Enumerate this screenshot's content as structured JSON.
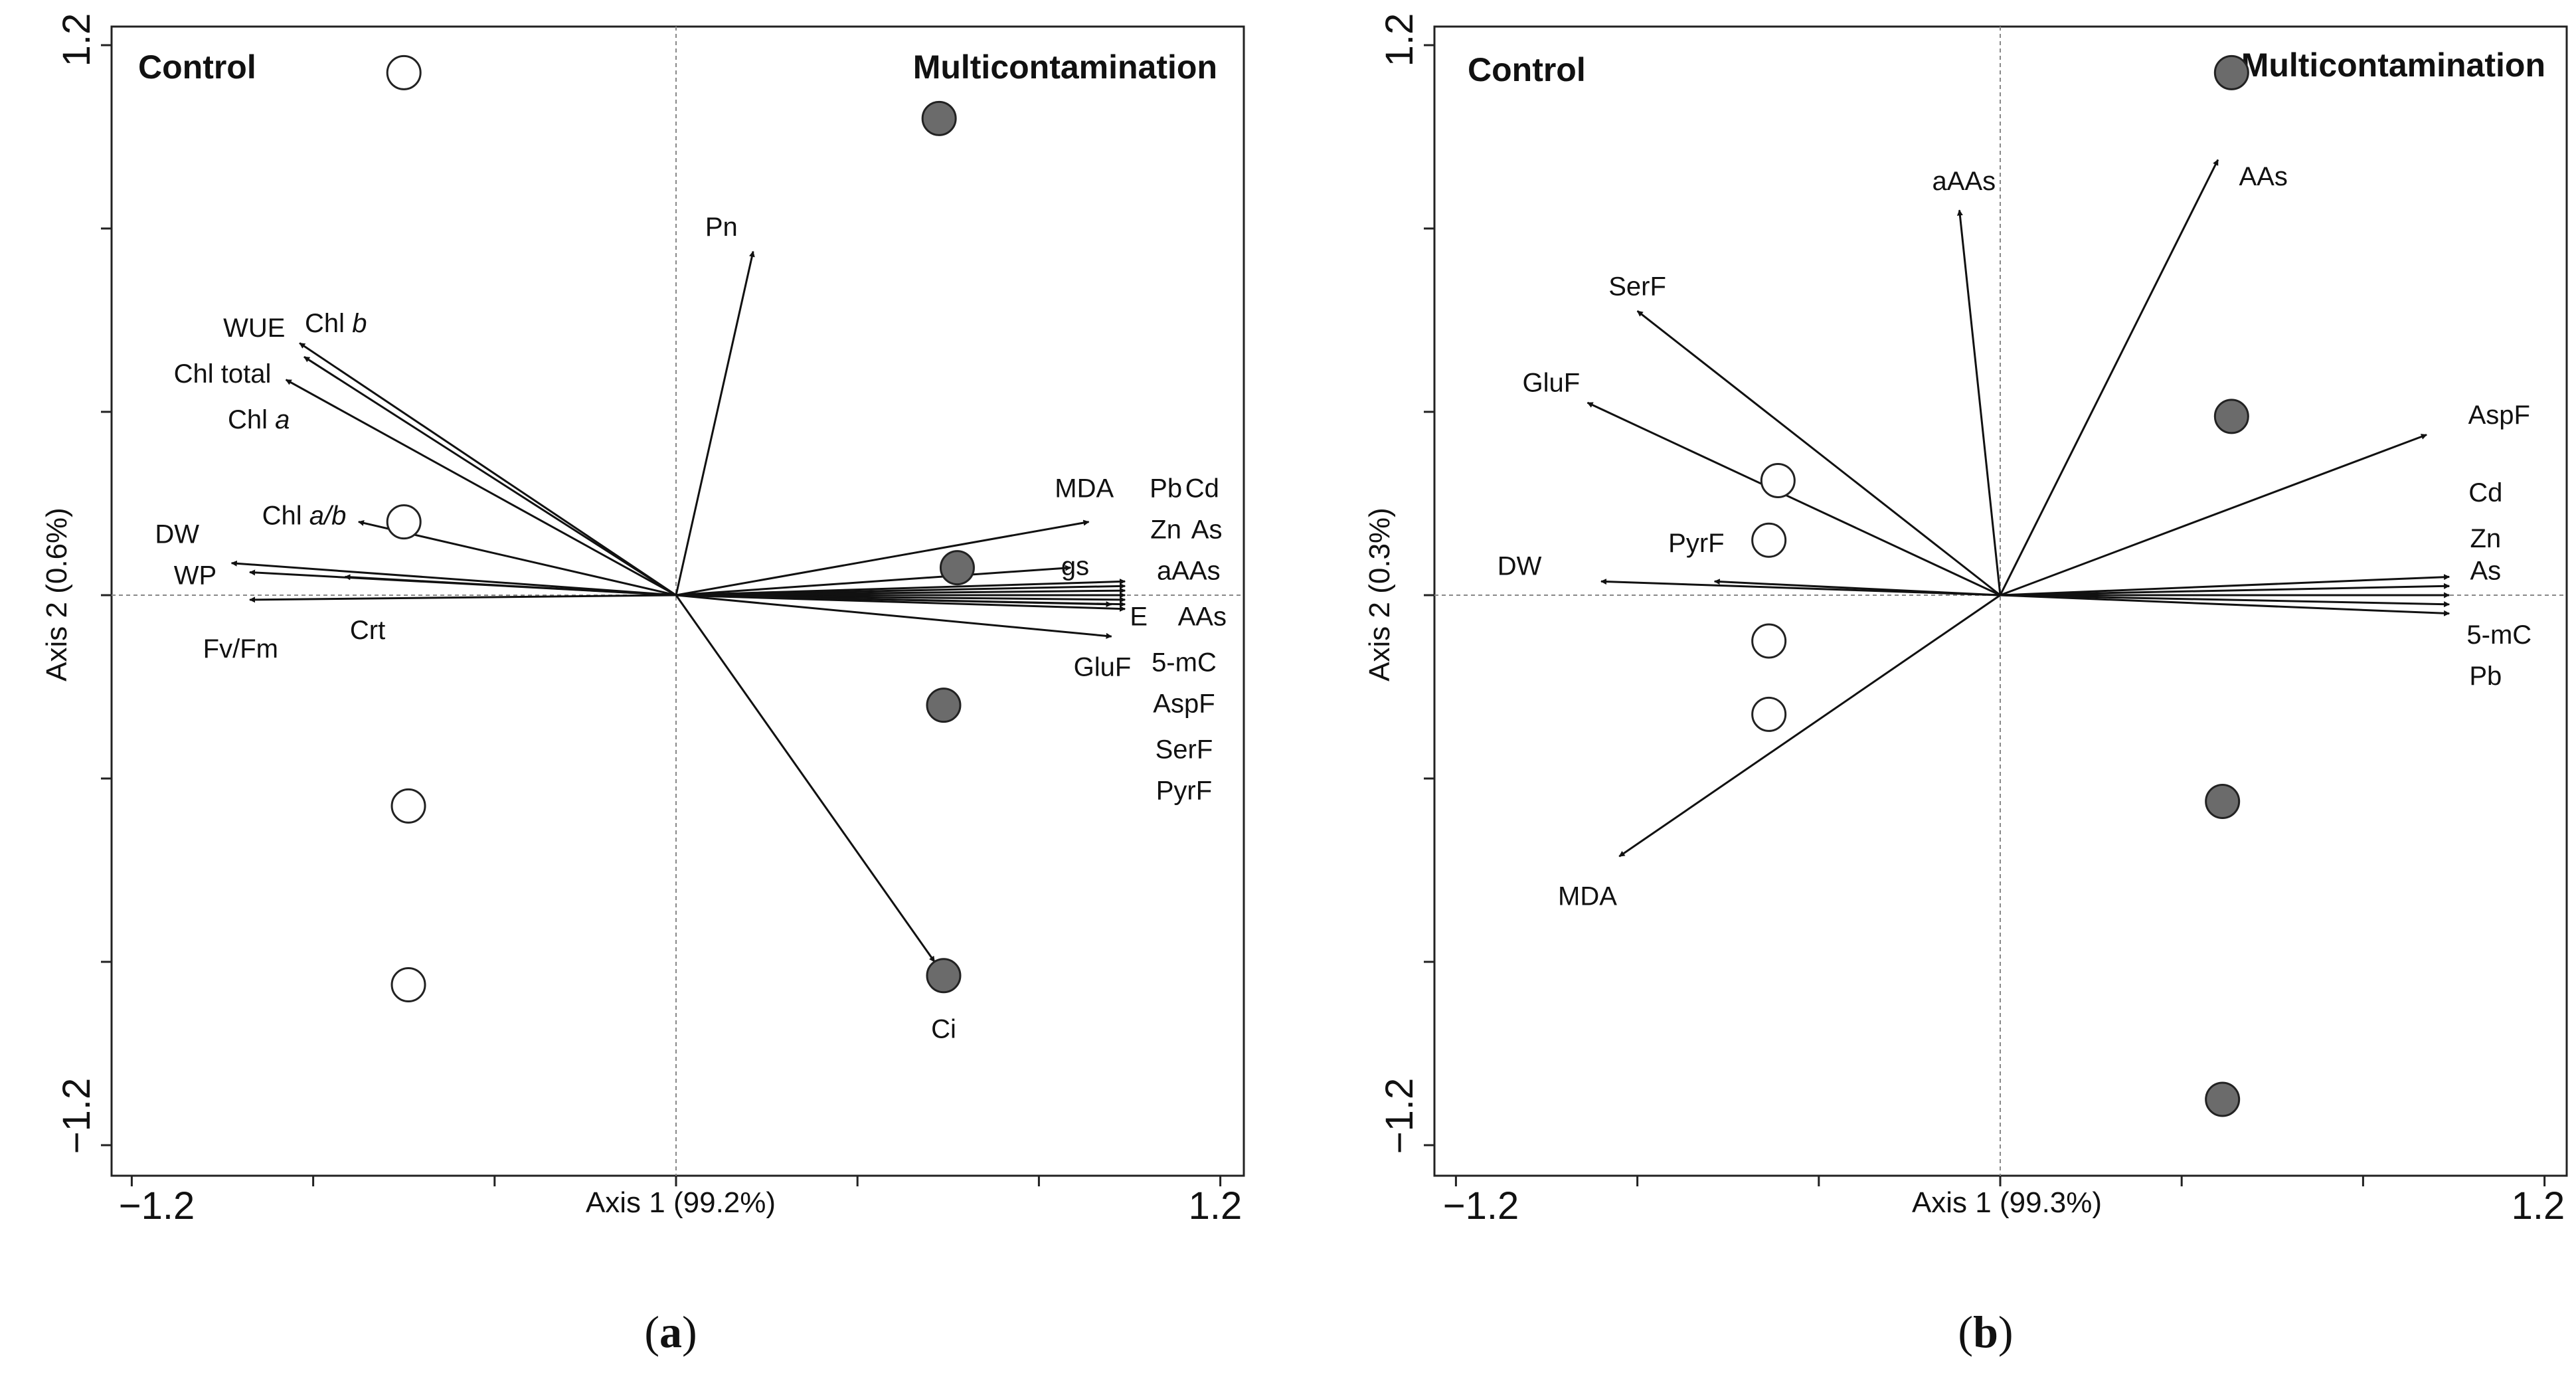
{
  "figure": {
    "caption_a": "a",
    "caption_b": "b"
  },
  "chart_data": [
    {
      "type": "scatter",
      "subtype": "biplot",
      "xlabel": "Axis 1 (99.2%)",
      "ylabel": "Axis 2 (0.6%)",
      "xlim": [
        -1.2,
        1.2
      ],
      "ylim": [
        -1.2,
        1.2
      ],
      "xtick_labels": [
        "−1.2",
        "1.2"
      ],
      "ytick_labels": [
        "1.2",
        "−1.2"
      ],
      "zero_lines": true,
      "legend": [],
      "group_labels": {
        "left": "Control",
        "right": "Multicontamination"
      },
      "points": [
        {
          "group": "Control",
          "x": -0.6,
          "y": 1.14
        },
        {
          "group": "Control",
          "x": -0.6,
          "y": 0.16
        },
        {
          "group": "Control",
          "x": -0.59,
          "y": -0.46
        },
        {
          "group": "Control",
          "x": -0.59,
          "y": -0.85
        },
        {
          "group": "Multicontamination",
          "x": 0.58,
          "y": 1.04
        },
        {
          "group": "Multicontamination",
          "x": 0.62,
          "y": 0.06
        },
        {
          "group": "Multicontamination",
          "x": 0.59,
          "y": -0.24
        },
        {
          "group": "Multicontamination",
          "x": 0.59,
          "y": -0.83
        }
      ],
      "arrows": [
        {
          "x": 0.17,
          "y": 0.75
        },
        {
          "x": -0.83,
          "y": 0.55
        },
        {
          "x": -0.82,
          "y": 0.52
        },
        {
          "x": -0.86,
          "y": 0.47
        },
        {
          "x": -0.7,
          "y": 0.16
        },
        {
          "x": -0.98,
          "y": 0.07
        },
        {
          "x": -0.94,
          "y": 0.05
        },
        {
          "x": -0.73,
          "y": 0.04
        },
        {
          "x": -0.94,
          "y": -0.01
        },
        {
          "x": 0.91,
          "y": 0.16
        },
        {
          "x": 0.87,
          "y": 0.06
        },
        {
          "x": 0.99,
          "y": 0.03
        },
        {
          "x": 0.99,
          "y": 0.02
        },
        {
          "x": 0.99,
          "y": 0.01
        },
        {
          "x": 0.99,
          "y": 0.0
        },
        {
          "x": 0.99,
          "y": -0.01
        },
        {
          "x": 0.99,
          "y": -0.02
        },
        {
          "x": 0.99,
          "y": -0.03
        },
        {
          "x": 0.96,
          "y": -0.02
        },
        {
          "x": 0.96,
          "y": -0.09
        },
        {
          "x": 0.57,
          "y": -0.8
        }
      ],
      "labels": [
        {
          "text": "Pn",
          "x": 0.1,
          "y": 0.8
        },
        {
          "text": "WUE",
          "x": -0.93,
          "y": 0.58
        },
        {
          "text": "Chl",
          "italic": "b",
          "x": -0.75,
          "y": 0.59
        },
        {
          "text": "Chl total",
          "x": -1.0,
          "y": 0.48
        },
        {
          "text": "Chl",
          "italic": "a",
          "x": -0.92,
          "y": 0.38
        },
        {
          "text": "Chl",
          "italic": "a/b",
          "x": -0.82,
          "y": 0.17
        },
        {
          "text": "DW",
          "x": -1.1,
          "y": 0.13
        },
        {
          "text": "WP",
          "x": -1.06,
          "y": 0.04
        },
        {
          "text": "Crt",
          "x": -0.68,
          "y": -0.08
        },
        {
          "text": "Fv/Fm",
          "x": -0.96,
          "y": -0.12
        },
        {
          "text": "MDA",
          "x": 0.9,
          "y": 0.23
        },
        {
          "text": "Pb",
          "x": 1.08,
          "y": 0.23
        },
        {
          "text": "Cd",
          "x": 1.16,
          "y": 0.23
        },
        {
          "text": "Zn",
          "x": 1.08,
          "y": 0.14
        },
        {
          "text": "As",
          "x": 1.17,
          "y": 0.14
        },
        {
          "text": "gs",
          "x": 0.88,
          "y": 0.06
        },
        {
          "text": "aAAs",
          "x": 1.13,
          "y": 0.05
        },
        {
          "text": "E",
          "x": 1.02,
          "y": -0.05
        },
        {
          "text": "AAs",
          "x": 1.16,
          "y": -0.05
        },
        {
          "text": "GluF",
          "x": 0.94,
          "y": -0.16
        },
        {
          "text": "5-mC",
          "x": 1.12,
          "y": -0.15
        },
        {
          "text": "AspF",
          "x": 1.12,
          "y": -0.24
        },
        {
          "text": "SerF",
          "x": 1.12,
          "y": -0.34
        },
        {
          "text": "PyrF",
          "x": 1.12,
          "y": -0.43
        },
        {
          "text": "Ci",
          "x": 0.59,
          "y": -0.95
        }
      ]
    },
    {
      "type": "scatter",
      "subtype": "biplot",
      "xlabel": "Axis 1 (99.3%)",
      "ylabel": "Axis 2 (0.3%)",
      "xlim": [
        -1.2,
        1.2
      ],
      "ylim": [
        -1.2,
        1.2
      ],
      "xtick_labels": [
        "−1.2",
        "1.2"
      ],
      "ytick_labels": [
        "1.2",
        "−1.2"
      ],
      "zero_lines": true,
      "legend": [],
      "group_labels": {
        "left": "Control",
        "right": "Multicontamination"
      },
      "points": [
        {
          "group": "Control",
          "x": -0.49,
          "y": 0.25
        },
        {
          "group": "Control",
          "x": -0.51,
          "y": 0.12
        },
        {
          "group": "Control",
          "x": -0.51,
          "y": -0.1
        },
        {
          "group": "Control",
          "x": -0.51,
          "y": -0.26
        },
        {
          "group": "Multicontamination",
          "x": 0.51,
          "y": 1.14
        },
        {
          "group": "Multicontamination",
          "x": 0.51,
          "y": 0.39
        },
        {
          "group": "Multicontamination",
          "x": 0.49,
          "y": -0.45
        },
        {
          "group": "Multicontamination",
          "x": 0.49,
          "y": -1.1
        }
      ],
      "arrows": [
        {
          "x": -0.09,
          "y": 0.84
        },
        {
          "x": 0.48,
          "y": 0.95
        },
        {
          "x": -0.8,
          "y": 0.62
        },
        {
          "x": -0.91,
          "y": 0.42
        },
        {
          "x": 0.94,
          "y": 0.35
        },
        {
          "x": -0.63,
          "y": 0.03
        },
        {
          "x": -0.88,
          "y": 0.03
        },
        {
          "x": 0.99,
          "y": 0.04
        },
        {
          "x": 0.99,
          "y": 0.02
        },
        {
          "x": 0.99,
          "y": 0.0
        },
        {
          "x": 0.99,
          "y": -0.02
        },
        {
          "x": 0.99,
          "y": -0.04
        },
        {
          "x": -0.84,
          "y": -0.57
        }
      ],
      "labels": [
        {
          "text": "aAAs",
          "x": -0.08,
          "y": 0.9
        },
        {
          "text": "AAs",
          "x": 0.58,
          "y": 0.91
        },
        {
          "text": "SerF",
          "x": -0.8,
          "y": 0.67
        },
        {
          "text": "GluF",
          "x": -0.99,
          "y": 0.46
        },
        {
          "text": "AspF",
          "x": 1.1,
          "y": 0.39
        },
        {
          "text": "Cd",
          "x": 1.07,
          "y": 0.22
        },
        {
          "text": "PyrF",
          "x": -0.67,
          "y": 0.11
        },
        {
          "text": "Zn",
          "x": 1.07,
          "y": 0.12
        },
        {
          "text": "DW",
          "x": -1.06,
          "y": 0.06
        },
        {
          "text": "As",
          "x": 1.07,
          "y": 0.05
        },
        {
          "text": "5-mC",
          "x": 1.1,
          "y": -0.09
        },
        {
          "text": "Pb",
          "x": 1.07,
          "y": -0.18
        },
        {
          "text": "MDA",
          "x": -0.91,
          "y": -0.66
        }
      ]
    }
  ]
}
